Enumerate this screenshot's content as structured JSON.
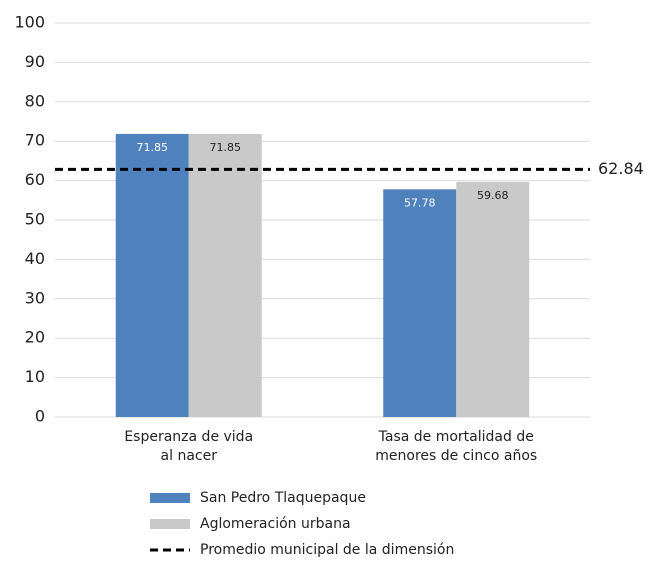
{
  "chart_data": {
    "type": "bar",
    "categories": [
      [
        "Esperanza de vida",
        "al nacer"
      ],
      [
        "Tasa de mortalidad de",
        "menores de cinco años"
      ]
    ],
    "series": [
      {
        "name": "San Pedro Tlaquepaque",
        "color": "#4f81bd",
        "values": [
          71.85,
          57.78
        ]
      },
      {
        "name": "Aglomeración urbana",
        "color": "#c9c9c9",
        "values": [
          71.85,
          59.68
        ]
      }
    ],
    "reference_lines": [
      {
        "name": "Promedio municipal de la dimensión",
        "value": 62.84,
        "color": "#000000"
      }
    ],
    "ylim": [
      0,
      100
    ],
    "yticks": [
      0,
      10,
      20,
      30,
      40,
      50,
      60,
      70,
      80,
      90,
      100
    ],
    "grid": true,
    "legend": "bottom"
  }
}
